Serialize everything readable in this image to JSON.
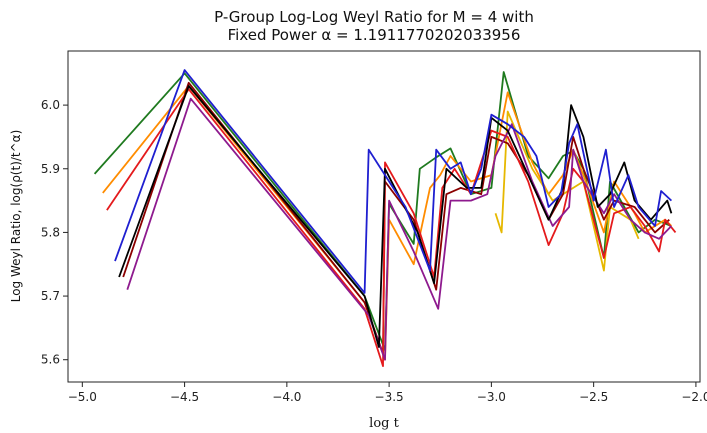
{
  "chart_data": {
    "type": "line",
    "title_line1": "P-Group Log-Log Weyl Ratio for M = 4 with",
    "title_line2": "Fixed Power α = 1.1911770202033956",
    "xlabel": "log t",
    "ylabel": "Log Weyl Ratio, log(ρ(t)/t^α)",
    "xlim": [
      -5.07,
      -1.98
    ],
    "ylim": [
      5.565,
      6.085
    ],
    "xticks": [
      -5.0,
      -4.5,
      -4.0,
      -3.5,
      -3.0,
      -2.5,
      -2.0
    ],
    "xtick_labels": [
      "−5.0",
      "−4.5",
      "−4.0",
      "−3.5",
      "−3.0",
      "−2.5",
      "−2.0"
    ],
    "yticks": [
      5.6,
      5.7,
      5.8,
      5.9,
      6.0
    ],
    "ytick_labels": [
      "5.6",
      "5.7",
      "5.8",
      "5.9",
      "6.0"
    ],
    "grid": false,
    "series": [
      {
        "color": "#1f7a1f",
        "points": [
          [
            -4.94,
            5.892
          ],
          [
            -4.5,
            6.05
          ],
          [
            -3.62,
            5.7
          ],
          [
            -3.52,
            5.615
          ],
          [
            -3.5,
            5.845
          ],
          [
            -3.38,
            5.782
          ],
          [
            -3.35,
            5.9
          ],
          [
            -3.27,
            5.918
          ],
          [
            -3.2,
            5.932
          ],
          [
            -3.1,
            5.86
          ],
          [
            -3.0,
            5.87
          ],
          [
            -2.94,
            6.052
          ],
          [
            -2.82,
            5.92
          ],
          [
            -2.72,
            5.885
          ],
          [
            -2.65,
            5.92
          ],
          [
            -2.6,
            5.928
          ],
          [
            -2.55,
            5.9
          ],
          [
            -2.45,
            5.76
          ],
          [
            -2.42,
            5.88
          ],
          [
            -2.35,
            5.84
          ],
          [
            -2.28,
            5.8
          ],
          [
            -2.2,
            5.82
          ],
          [
            -2.12,
            5.81
          ]
        ]
      },
      {
        "color": "#ff8c00",
        "points": [
          [
            -4.9,
            5.862
          ],
          [
            -4.48,
            6.03
          ],
          [
            -3.62,
            5.69
          ],
          [
            -3.52,
            5.6
          ],
          [
            -3.5,
            5.82
          ],
          [
            -3.38,
            5.75
          ],
          [
            -3.3,
            5.87
          ],
          [
            -3.25,
            5.89
          ],
          [
            -3.2,
            5.92
          ],
          [
            -3.1,
            5.88
          ],
          [
            -3.0,
            5.89
          ],
          [
            -2.92,
            6.02
          ],
          [
            -2.8,
            5.91
          ],
          [
            -2.72,
            5.86
          ],
          [
            -2.65,
            5.89
          ],
          [
            -2.6,
            5.93
          ],
          [
            -2.55,
            5.89
          ],
          [
            -2.45,
            5.8
          ],
          [
            -2.4,
            5.88
          ],
          [
            -2.3,
            5.83
          ],
          [
            -2.25,
            5.8
          ],
          [
            -2.15,
            5.82
          ],
          [
            -2.12,
            5.81
          ]
        ]
      },
      {
        "color": "#e6b800",
        "points": [
          [
            -2.98,
            5.83
          ],
          [
            -2.95,
            5.8
          ],
          [
            -2.92,
            5.99
          ],
          [
            -2.8,
            5.9
          ],
          [
            -2.7,
            5.85
          ],
          [
            -2.6,
            5.87
          ],
          [
            -2.55,
            5.88
          ],
          [
            -2.45,
            5.74
          ],
          [
            -2.42,
            5.84
          ],
          [
            -2.32,
            5.82
          ],
          [
            -2.28,
            5.79
          ]
        ]
      },
      {
        "color": "#8b0000",
        "points": [
          [
            -4.8,
            5.73
          ],
          [
            -4.48,
            6.035
          ],
          [
            -3.62,
            5.69
          ],
          [
            -3.53,
            5.61
          ],
          [
            -3.52,
            5.88
          ],
          [
            -3.38,
            5.82
          ],
          [
            -3.27,
            5.71
          ],
          [
            -3.22,
            5.86
          ],
          [
            -3.15,
            5.87
          ],
          [
            -3.05,
            5.86
          ],
          [
            -3.0,
            5.95
          ],
          [
            -2.92,
            5.94
          ],
          [
            -2.82,
            5.89
          ],
          [
            -2.72,
            5.82
          ],
          [
            -2.65,
            5.86
          ],
          [
            -2.6,
            5.95
          ],
          [
            -2.55,
            5.9
          ],
          [
            -2.45,
            5.82
          ],
          [
            -2.4,
            5.85
          ],
          [
            -2.3,
            5.84
          ],
          [
            -2.2,
            5.8
          ],
          [
            -2.13,
            5.82
          ]
        ]
      },
      {
        "color": "#e41a1c",
        "points": [
          [
            -4.88,
            5.835
          ],
          [
            -4.48,
            6.025
          ],
          [
            -3.62,
            5.68
          ],
          [
            -3.53,
            5.59
          ],
          [
            -3.52,
            5.91
          ],
          [
            -3.38,
            5.83
          ],
          [
            -3.28,
            5.73
          ],
          [
            -3.24,
            5.87
          ],
          [
            -3.18,
            5.9
          ],
          [
            -3.1,
            5.86
          ],
          [
            -3.0,
            5.96
          ],
          [
            -2.92,
            5.95
          ],
          [
            -2.82,
            5.88
          ],
          [
            -2.72,
            5.78
          ],
          [
            -2.65,
            5.83
          ],
          [
            -2.6,
            5.9
          ],
          [
            -2.55,
            5.88
          ],
          [
            -2.45,
            5.76
          ],
          [
            -2.4,
            5.83
          ],
          [
            -2.32,
            5.84
          ],
          [
            -2.25,
            5.81
          ],
          [
            -2.18,
            5.77
          ],
          [
            -2.15,
            5.82
          ],
          [
            -2.1,
            5.8
          ]
        ]
      },
      {
        "color": "#8e1a8e",
        "points": [
          [
            -4.78,
            5.71
          ],
          [
            -4.47,
            6.01
          ],
          [
            -3.6,
            5.67
          ],
          [
            -3.52,
            5.6
          ],
          [
            -3.5,
            5.85
          ],
          [
            -3.38,
            5.77
          ],
          [
            -3.26,
            5.68
          ],
          [
            -3.2,
            5.85
          ],
          [
            -3.1,
            5.85
          ],
          [
            -3.02,
            5.86
          ],
          [
            -2.98,
            5.92
          ],
          [
            -2.9,
            5.97
          ],
          [
            -2.8,
            5.88
          ],
          [
            -2.7,
            5.81
          ],
          [
            -2.62,
            5.84
          ],
          [
            -2.6,
            5.93
          ],
          [
            -2.55,
            5.88
          ],
          [
            -2.45,
            5.83
          ],
          [
            -2.4,
            5.86
          ],
          [
            -2.32,
            5.82
          ],
          [
            -2.25,
            5.8
          ],
          [
            -2.18,
            5.79
          ],
          [
            -2.12,
            5.81
          ]
        ]
      },
      {
        "color": "#000000",
        "points": [
          [
            -4.82,
            5.73
          ],
          [
            -4.48,
            6.03
          ],
          [
            -3.62,
            5.7
          ],
          [
            -3.55,
            5.62
          ],
          [
            -3.52,
            5.9
          ],
          [
            -3.36,
            5.8
          ],
          [
            -3.28,
            5.72
          ],
          [
            -3.22,
            5.9
          ],
          [
            -3.12,
            5.87
          ],
          [
            -3.05,
            5.87
          ],
          [
            -3.0,
            5.98
          ],
          [
            -2.92,
            5.96
          ],
          [
            -2.82,
            5.89
          ],
          [
            -2.72,
            5.82
          ],
          [
            -2.65,
            5.87
          ],
          [
            -2.61,
            6.0
          ],
          [
            -2.55,
            5.95
          ],
          [
            -2.48,
            5.84
          ],
          [
            -2.42,
            5.86
          ],
          [
            -2.35,
            5.91
          ],
          [
            -2.3,
            5.85
          ],
          [
            -2.22,
            5.82
          ],
          [
            -2.14,
            5.85
          ],
          [
            -2.12,
            5.83
          ]
        ]
      },
      {
        "color": "#1f1fd0",
        "points": [
          [
            -4.84,
            5.755
          ],
          [
            -4.5,
            6.055
          ],
          [
            -3.62,
            5.705
          ],
          [
            -3.6,
            5.93
          ],
          [
            -3.42,
            5.84
          ],
          [
            -3.3,
            5.74
          ],
          [
            -3.27,
            5.93
          ],
          [
            -3.2,
            5.9
          ],
          [
            -3.15,
            5.91
          ],
          [
            -3.1,
            5.86
          ],
          [
            -3.05,
            5.9
          ],
          [
            -3.0,
            5.985
          ],
          [
            -2.92,
            5.97
          ],
          [
            -2.84,
            5.95
          ],
          [
            -2.78,
            5.92
          ],
          [
            -2.72,
            5.84
          ],
          [
            -2.66,
            5.86
          ],
          [
            -2.62,
            5.94
          ],
          [
            -2.58,
            5.97
          ],
          [
            -2.5,
            5.85
          ],
          [
            -2.44,
            5.93
          ],
          [
            -2.4,
            5.84
          ],
          [
            -2.33,
            5.89
          ],
          [
            -2.28,
            5.84
          ],
          [
            -2.2,
            5.81
          ],
          [
            -2.17,
            5.865
          ],
          [
            -2.12,
            5.85
          ]
        ]
      }
    ]
  }
}
